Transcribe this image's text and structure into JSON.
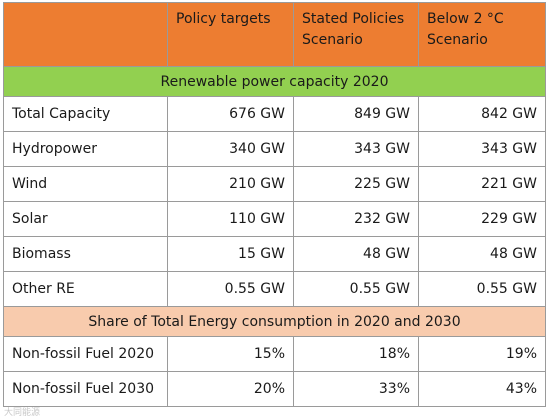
{
  "header": {
    "blank": "",
    "col1": "Policy targets",
    "col2": "Stated Policies Scenario",
    "col3": "Below 2 °C Scenario"
  },
  "section1": {
    "title": "Renewable power capacity 2020"
  },
  "rows1": [
    {
      "label": "Total Capacity",
      "v1": "676 GW",
      "v2": "849 GW",
      "v3": "842 GW"
    },
    {
      "label": "Hydropower",
      "v1": "340 GW",
      "v2": "343 GW",
      "v3": "343 GW"
    },
    {
      "label": "Wind",
      "v1": "210 GW",
      "v2": "225 GW",
      "v3": "221 GW"
    },
    {
      "label": "Solar",
      "v1": "110 GW",
      "v2": "232 GW",
      "v3": "229 GW"
    },
    {
      "label": "Biomass",
      "v1": "15 GW",
      "v2": "48 GW",
      "v3": "48 GW"
    },
    {
      "label": "Other RE",
      "v1": "0.55 GW",
      "v2": "0.55 GW",
      "v3": "0.55 GW"
    }
  ],
  "section2": {
    "title": "Share of Total Energy consumption in 2020 and 2030"
  },
  "rows2": [
    {
      "label": "Non-fossil Fuel 2020",
      "v1": "15%",
      "v2": "18%",
      "v3": "19%"
    },
    {
      "label": "Non-fossil Fuel 2030",
      "v1": "20%",
      "v2": "33%",
      "v3": "43%"
    }
  ],
  "watermark": "大同能源",
  "colors": {
    "header": "#ED7D31",
    "section1": "#92D050",
    "section2": "#F8CBAD"
  }
}
